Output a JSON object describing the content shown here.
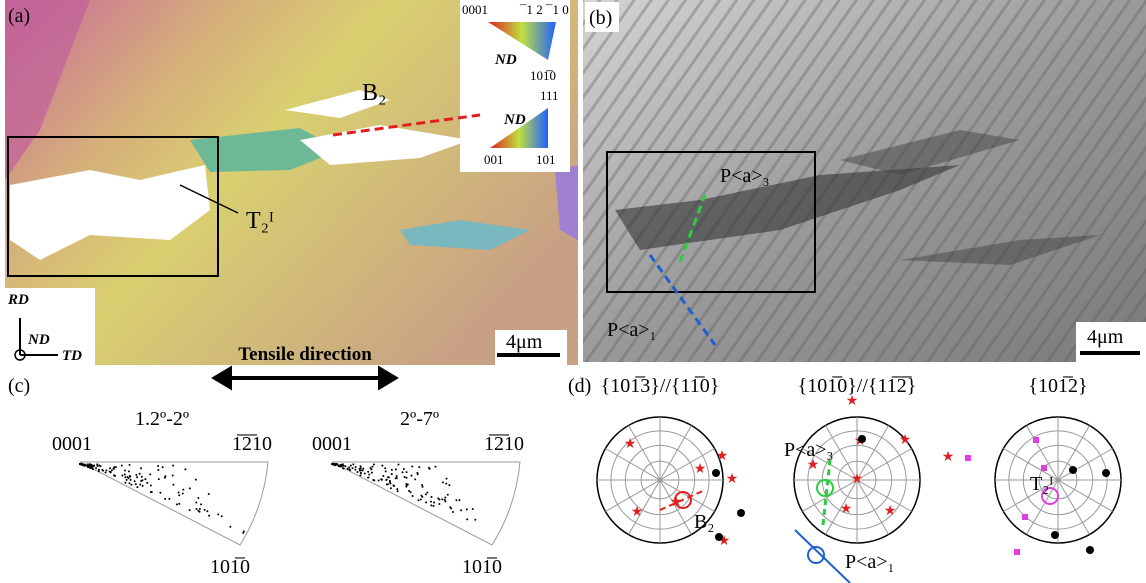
{
  "panel_a": {
    "label": "(a)",
    "ipf_hcp": {
      "corner_0001": "0001",
      "corner_1210": "¯1 2 ¯1 0",
      "corner_1010": "101̅0",
      "axis": "ND"
    },
    "ipf_cubic": {
      "corner_111": "111",
      "corner_001": "001",
      "corner_101": "101",
      "axis": "ND"
    },
    "label_b2": "B₂",
    "label_t2": "T₂ᴵ",
    "axes": {
      "rd": "RD",
      "nd": "ND",
      "td": "TD"
    },
    "scale_bar": "4μm"
  },
  "tensile_direction": "Tensile direction",
  "panel_b": {
    "label": "(b)",
    "label_pa3": "P<a>₃",
    "label_pa1": "P<a>₁",
    "scale_bar": "4μm"
  },
  "panel_c": {
    "label": "(c)",
    "plots": [
      {
        "title": "1.2º-2º",
        "corner_0001": "0001",
        "corner_1210": "1̅2̅10",
        "corner_1010": "101̅0"
      },
      {
        "title": "2º-7º",
        "corner_0001": "0001",
        "corner_1210": "1̅2̅10",
        "corner_1010": "101̅0"
      }
    ]
  },
  "panel_d": {
    "label": "(d)",
    "plots": [
      {
        "title": "{101̅3}//{11̅0}"
      },
      {
        "title": "{101̅0}//{11̅2̅}"
      },
      {
        "title": "{101̅2}"
      }
    ],
    "annotations": {
      "b2": "B₂",
      "pa3": "P<a>₃",
      "pa1": "P<a>₁",
      "t2": "T₂ᴵ"
    }
  }
}
